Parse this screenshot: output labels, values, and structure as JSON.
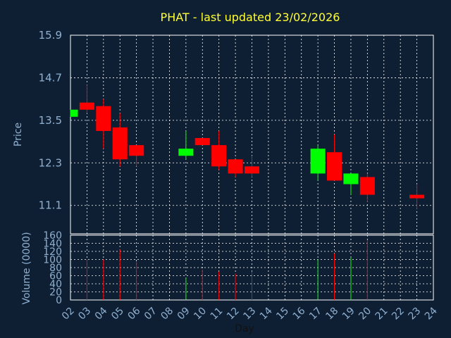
{
  "chart_data": {
    "type": "candlestick",
    "title": "PHAT - last updated 23/02/2026",
    "ylabel": "Price",
    "vlabel": "Volume (0000)",
    "xlabel": "Day",
    "ylim": [
      10.3,
      15.9
    ],
    "yticks": [
      "15.9",
      "14.7",
      "13.5",
      "12.3",
      "11.1"
    ],
    "vlim": [
      0,
      160
    ],
    "vticks": [
      "0",
      "20",
      "40",
      "60",
      "80",
      "100",
      "120",
      "140",
      "160"
    ],
    "categories": [
      "02",
      "03",
      "04",
      "05",
      "06",
      "07",
      "08",
      "09",
      "10",
      "11",
      "12",
      "13",
      "14",
      "15",
      "16",
      "17",
      "18",
      "19",
      "20",
      "21",
      "22",
      "23",
      "24"
    ],
    "colors": {
      "up": "#00ff00",
      "down": "#ff0000",
      "background": "#0f1f33",
      "title": "#ffff33",
      "axis_text": "#8fb0d0"
    },
    "candles": [
      {
        "x": "02",
        "open": 13.6,
        "close": 13.8,
        "high": 13.8,
        "low": 13.6,
        "volume": 0
      },
      {
        "x": "03",
        "open": 14.0,
        "close": 13.8,
        "high": 14.5,
        "low": 13.7,
        "volume": 100
      },
      {
        "x": "04",
        "open": 13.9,
        "close": 13.2,
        "high": 14.1,
        "low": 12.7,
        "volume": 100
      },
      {
        "x": "05",
        "open": 13.3,
        "close": 12.4,
        "high": 13.7,
        "low": 12.2,
        "volume": 125
      },
      {
        "x": "06",
        "open": 12.8,
        "close": 12.5,
        "high": 12.8,
        "low": 12.2,
        "volume": 95
      },
      {
        "x": "09",
        "open": 12.5,
        "close": 12.7,
        "high": 13.2,
        "low": 12.4,
        "volume": 55
      },
      {
        "x": "10",
        "open": 13.0,
        "close": 12.8,
        "high": 13.0,
        "low": 12.8,
        "volume": 75
      },
      {
        "x": "11",
        "open": 12.8,
        "close": 12.2,
        "high": 13.2,
        "low": 12.1,
        "volume": 70
      },
      {
        "x": "12",
        "open": 12.4,
        "close": 12.0,
        "high": 12.4,
        "low": 11.9,
        "volume": 65
      },
      {
        "x": "13",
        "open": 12.2,
        "close": 12.0,
        "high": 12.5,
        "low": 11.9,
        "volume": 70
      },
      {
        "x": "17",
        "open": 12.0,
        "close": 12.7,
        "high": 12.8,
        "low": 11.8,
        "volume": 100
      },
      {
        "x": "18",
        "open": 12.6,
        "close": 11.8,
        "high": 13.1,
        "low": 11.8,
        "volume": 115
      },
      {
        "x": "19",
        "open": 11.7,
        "close": 12.0,
        "high": 12.0,
        "low": 11.4,
        "volume": 105
      },
      {
        "x": "20",
        "open": 11.9,
        "close": 11.4,
        "high": 12.0,
        "low": 11.2,
        "volume": 148
      },
      {
        "x": "23",
        "open": 11.4,
        "close": 11.3,
        "high": 11.7,
        "low": 11.0,
        "volume": 0
      }
    ]
  }
}
